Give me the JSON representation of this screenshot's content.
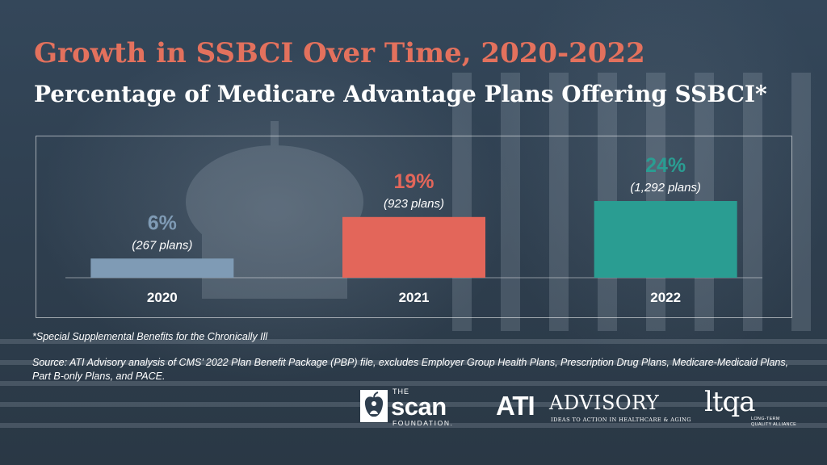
{
  "header": {
    "title": "Growth in SSBCI Over Time, 2020-2022",
    "subtitle": "Percentage of Medicare Advantage Plans Offering SSBCI*"
  },
  "chart_data": {
    "type": "bar",
    "categories": [
      "2020",
      "2021",
      "2022"
    ],
    "values": [
      6,
      19,
      24
    ],
    "value_labels": [
      "6%",
      "19%",
      "24%"
    ],
    "sub_labels": [
      "(267 plans)",
      "(923 plans)",
      "(1,292 plans)"
    ],
    "colors": [
      "#7f9bb5",
      "#e3665a",
      "#2a9d92"
    ],
    "ylim": [
      0,
      24
    ],
    "title": "",
    "xlabel": "",
    "ylabel": "",
    "grid": false,
    "legend": "none"
  },
  "footnote": "*Special Supplemental Benefits for the Chronically Ill",
  "source": "Source: ATI Advisory analysis of CMS’ 2022 Plan Benefit Package (PBP) file, excludes Employer Group Health Plans, Prescription Drug Plans, Medicare-Medicaid Plans, Part B-only Plans, and PACE.",
  "logos": {
    "scan": {
      "the": "THE",
      "word": "scan",
      "foundation": "FOUNDATION.",
      "icon": "apple-person-icon"
    },
    "ati": {
      "mark": "ATI",
      "word": "ADVISORY",
      "tagline": "IDEAS TO ACTION IN HEALTHCARE & AGING"
    },
    "ltqa": {
      "mark": "ltqa",
      "tagline": "LONG-TERM QUALITY ALLIANCE"
    }
  },
  "colors": {
    "title": "#e3715d",
    "background": "#2f3f4f",
    "text": "#ffffff"
  }
}
